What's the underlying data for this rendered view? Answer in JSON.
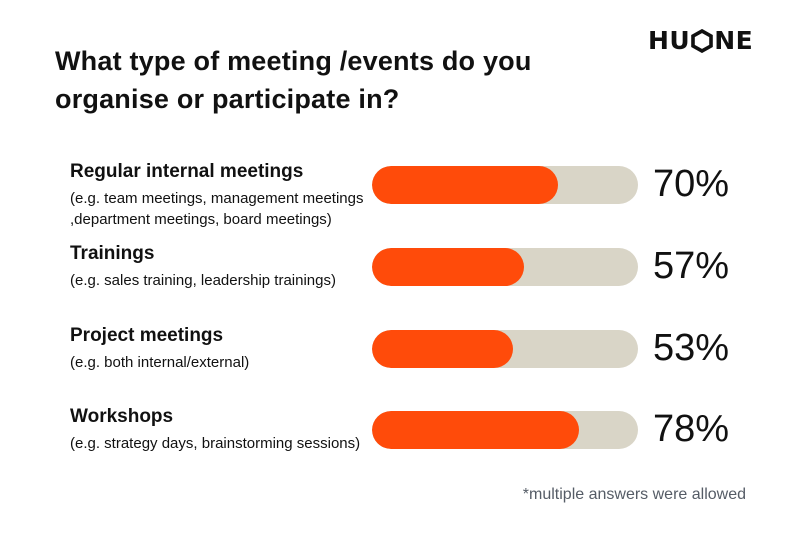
{
  "header": {
    "title_lines": [
      "What type of meeting /events do you",
      "organise or participate in?"
    ],
    "logo_left": "HU",
    "logo_right": "NE"
  },
  "chart_data": {
    "type": "bar",
    "orientation": "horizontal",
    "title": "What type of meeting /events do you organise or participate in?",
    "categories": [
      "Regular internal meetings",
      "Trainings",
      "Project meetings",
      "Workshops"
    ],
    "subcategories": [
      [
        "(e.g. team meetings, management meetings",
        ",department meetings, board meetings)"
      ],
      [
        "(e.g. sales training, leadership trainings)"
      ],
      [
        "(e.g. both internal/external)"
      ],
      [
        "(e.g. strategy days, brainstorming sessions)"
      ]
    ],
    "values": [
      70,
      57,
      53,
      78
    ],
    "value_labels": [
      "70%",
      "57%",
      "53%",
      "78%"
    ],
    "xlim": [
      0,
      100
    ],
    "unit": "%",
    "colors": {
      "fill": "#ff4b0a",
      "track": "#d9d5c7"
    },
    "grid": false
  },
  "footnote": "*multiple answers were allowed"
}
